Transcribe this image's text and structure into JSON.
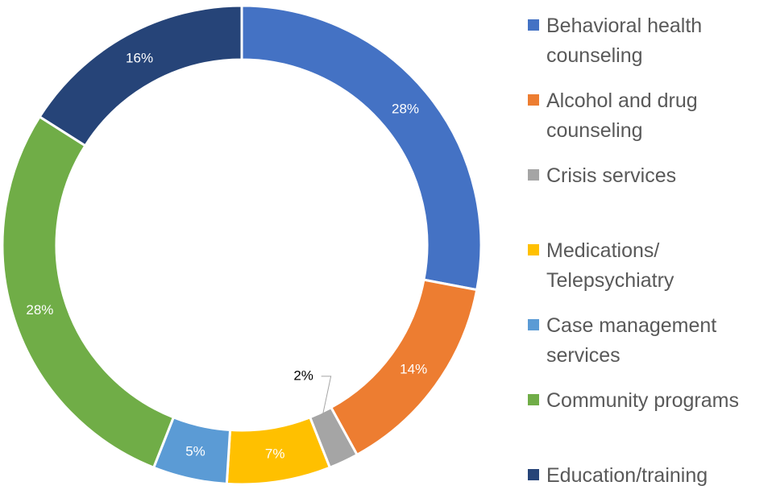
{
  "chart_data": {
    "type": "donut",
    "categories": [
      "Behavioral health counseling",
      "Alcohol and drug counseling",
      "Crisis services",
      "Medications/ Telepsychiatry",
      "Case management services",
      "Community programs",
      "Education/training"
    ],
    "values": [
      28,
      14,
      2,
      7,
      5,
      28,
      16
    ],
    "value_labels": [
      "28%",
      "14%",
      "2%",
      "7%",
      "5%",
      "28%",
      "16%"
    ],
    "colors": [
      "#4472c4",
      "#ed7d31",
      "#a5a5a5",
      "#ffc000",
      "#5b9bd5",
      "#70ad47",
      "#264478"
    ],
    "legend": "right"
  }
}
